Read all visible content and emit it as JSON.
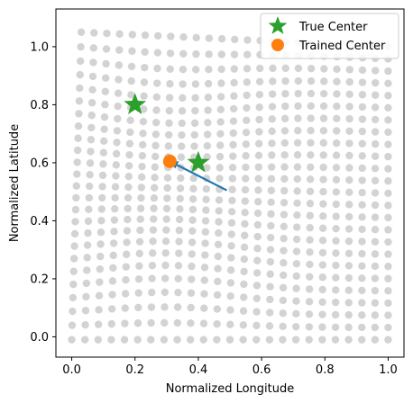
{
  "chart_data": {
    "type": "scatter",
    "xlabel": "Normalized Longitude",
    "ylabel": "Normalized Latitude",
    "xlim": [
      -0.05,
      1.05
    ],
    "ylim": [
      -0.07,
      1.13
    ],
    "xticks": [
      0.0,
      0.2,
      0.4,
      0.6,
      0.8,
      1.0
    ],
    "yticks": [
      0.0,
      0.2,
      0.4,
      0.6,
      0.8,
      1.0
    ],
    "xtick_labels": [
      "0.0",
      "0.2",
      "0.4",
      "0.6",
      "0.8",
      "1.0"
    ],
    "ytick_labels": [
      "0.0",
      "0.2",
      "0.4",
      "0.6",
      "0.8",
      "1.0"
    ],
    "grid": false,
    "legend_position": "top-right",
    "background_points": {
      "description": "deformed grid of points",
      "columns": 25,
      "rows": 25,
      "color": "#d3d3d3",
      "bottom_left": [
        0.0,
        -0.01
      ],
      "bottom_right": [
        1.0,
        -0.01
      ],
      "top_left": [
        0.03,
        1.05
      ],
      "top_right": [
        1.0,
        1.0
      ],
      "bulge_center_x": 0.3,
      "bulge_amplitude": 0.1,
      "bulge_width": 0.3
    },
    "series": [
      {
        "name": "True Center",
        "marker": "star",
        "color": "#2ca02c",
        "points": [
          {
            "x": 0.2,
            "y": 0.8
          },
          {
            "x": 0.4,
            "y": 0.6
          }
        ]
      },
      {
        "name": "Trained Center",
        "marker": "circle",
        "color": "#ff7f0e",
        "points": [
          {
            "x": 0.31,
            "y": 0.605
          }
        ]
      }
    ],
    "arrow": {
      "from": [
        0.49,
        0.505
      ],
      "to": [
        0.31,
        0.605
      ],
      "color": "#1f77b4"
    }
  }
}
